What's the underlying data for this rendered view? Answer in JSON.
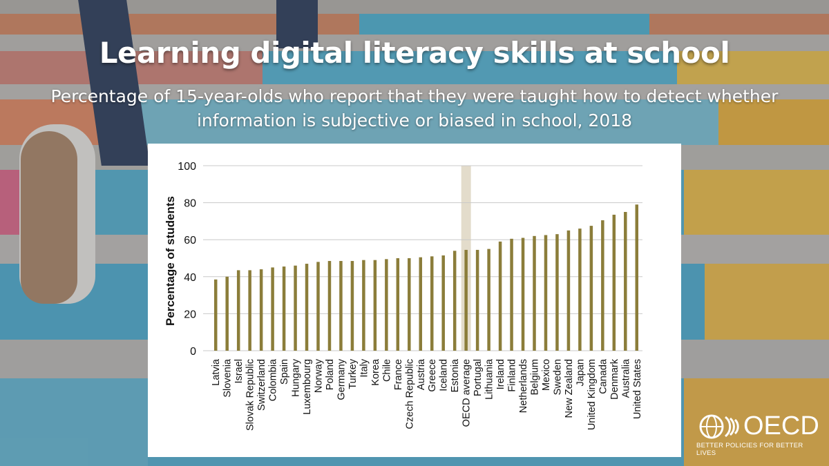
{
  "header": {
    "title": "Learning digital literacy skills at school",
    "subtitle": "Percentage of 15-year-olds who report that they were taught how to detect whether information is subjective or biased in school, 2018"
  },
  "logo": {
    "name": "OECD",
    "tagline": "BETTER POLICIES FOR BETTER LIVES"
  },
  "colors": {
    "bar": "#8b7d3a",
    "highlight": "#e3dccb",
    "grid": "#c8c8c8"
  },
  "chart_data": {
    "type": "bar",
    "ylabel": "Percentage of students",
    "ylim": [
      0,
      100
    ],
    "yticks": [
      0,
      20,
      40,
      60,
      80,
      100
    ],
    "grid": true,
    "highlight_category": "OECD average",
    "categories": [
      "Latvia",
      "Slovenia",
      "Israel",
      "Slovak Republic",
      "Switzerland",
      "Colombia",
      "Spain",
      "Hungary",
      "Luxembourg",
      "Norway",
      "Poland",
      "Germany",
      "Turkey",
      "Italy",
      "Korea",
      "Chile",
      "France",
      "Czech Republic",
      "Austria",
      "Greece",
      "Iceland",
      "Estonia",
      "OECD average",
      "Portugal",
      "Lithuania",
      "Ireland",
      "Finland",
      "Netherlands",
      "Belgium",
      "Mexico",
      "Sweden",
      "New Zealand",
      "Japan",
      "United Kingdom",
      "Canada",
      "Denmark",
      "Australia",
      "United States"
    ],
    "values": [
      38.5,
      40,
      43.5,
      43.5,
      44,
      45,
      45.5,
      46,
      47,
      48,
      48.5,
      48.5,
      48.5,
      49,
      49,
      49.5,
      50,
      50,
      50.5,
      51,
      51.5,
      54,
      54.5,
      54.5,
      55,
      59,
      60.5,
      61,
      62,
      62.5,
      63,
      65,
      66,
      67.5,
      70.5,
      73.5,
      75,
      79
    ]
  }
}
